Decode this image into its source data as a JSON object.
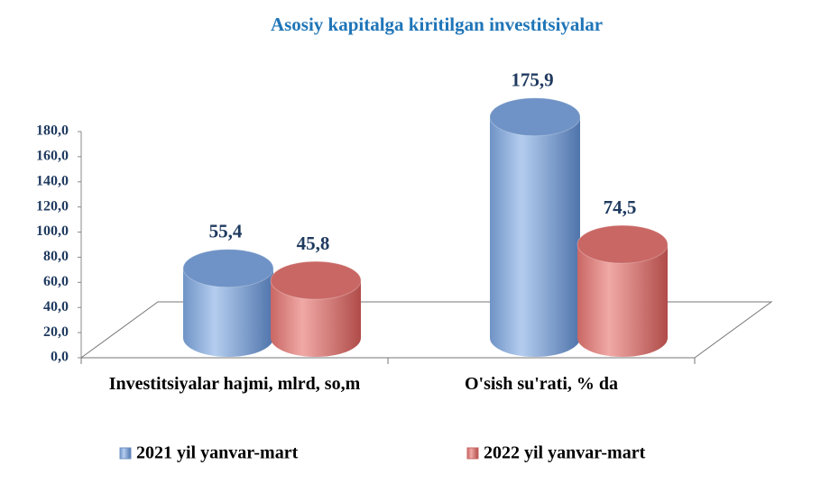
{
  "chart_data": {
    "type": "bar",
    "title": "Asosiy kapitalga kiritilgan investitsiyalar",
    "categories": [
      "Investitsiyalar hajmi,  mlrd, so,m",
      "O'sish su'rati, % da"
    ],
    "series": [
      {
        "name": "2021 yil yanvar-mart",
        "color": "#6f93c6",
        "values": [
          55.4,
          175.9
        ],
        "value_labels": [
          "55,4",
          "175,9"
        ]
      },
      {
        "name": "2022 yil yanvar-mart",
        "color": "#c96764",
        "values": [
          45.8,
          74.5
        ],
        "value_labels": [
          "45,8",
          "74,5"
        ]
      }
    ],
    "ylim": [
      0,
      180
    ],
    "yticks": [
      {
        "value": 0,
        "label": "0,0"
      },
      {
        "value": 20,
        "label": "20,0"
      },
      {
        "value": 40,
        "label": "40,0"
      },
      {
        "value": 60,
        "label": "60,0"
      },
      {
        "value": 80,
        "label": "80,0"
      },
      {
        "value": 100,
        "label": "100,0"
      },
      {
        "value": 120,
        "label": "120,0"
      },
      {
        "value": 140,
        "label": "140,0"
      },
      {
        "value": 160,
        "label": "160,0"
      },
      {
        "value": 180,
        "label": "180,0"
      }
    ],
    "legend": "bottom"
  }
}
